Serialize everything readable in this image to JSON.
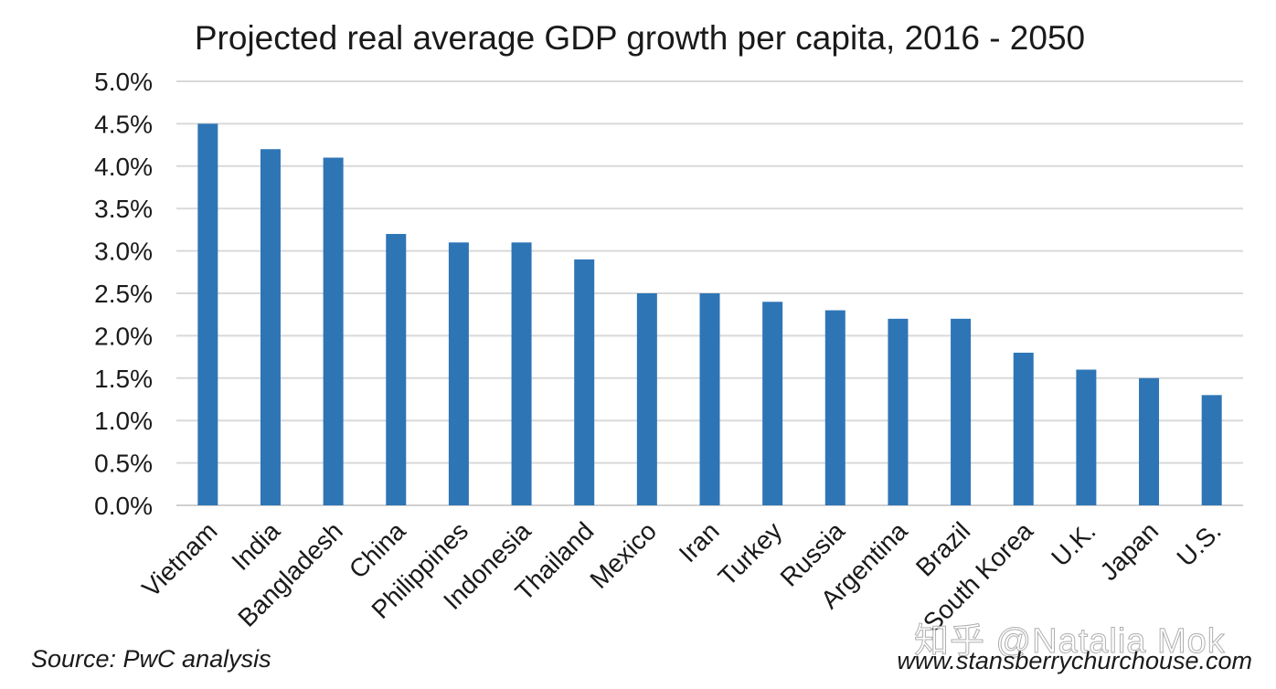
{
  "chart_data": {
    "type": "bar",
    "title": "Projected real average GDP growth per capita, 2016 - 2050",
    "xlabel": "",
    "ylabel": "",
    "ylim": [
      0,
      5.0
    ],
    "ytick_step": 0.5,
    "ytick_labels": [
      "0.0%",
      "0.5%",
      "1.0%",
      "1.5%",
      "2.0%",
      "2.5%",
      "3.0%",
      "3.5%",
      "4.0%",
      "4.5%",
      "5.0%"
    ],
    "grid": true,
    "legend": "none",
    "bar_color": "#2e75b6",
    "categories": [
      "Vietnam",
      "India",
      "Bangladesh",
      "China",
      "Philippines",
      "Indonesia",
      "Thailand",
      "Mexico",
      "Iran",
      "Turkey",
      "Russia",
      "Argentina",
      "Brazil",
      "South Korea",
      "U.K.",
      "Japan",
      "U.S."
    ],
    "values": [
      4.5,
      4.2,
      4.1,
      3.2,
      3.1,
      3.1,
      2.9,
      2.5,
      2.5,
      2.4,
      2.3,
      2.2,
      2.2,
      1.8,
      1.6,
      1.5,
      1.3
    ],
    "value_unit": "%"
  },
  "footer": {
    "source": "Source: PwC analysis",
    "website": "www.stansberrychurchouse.com",
    "watermark": "知乎 @Natalia Mok"
  }
}
